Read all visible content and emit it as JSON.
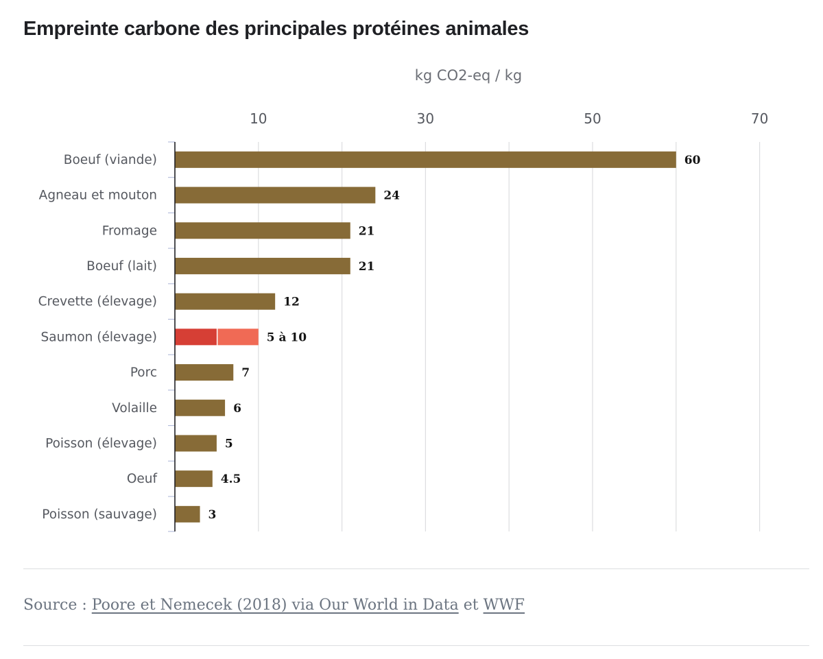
{
  "title": "Empreinte carbone des principales protéines animales",
  "source": {
    "prefix": "Source :",
    "link1": "Poore et Nemecek (2018) via Our World in Data",
    "middle": "et",
    "link2": "WWF"
  },
  "colors": {
    "bar": "#876b37",
    "range_low": "#d63f35",
    "range_high": "#f06a55",
    "grid": "#dcdde0",
    "axis": "#1f2024",
    "tick": "#a9b3d6"
  },
  "chart_data": {
    "type": "bar",
    "orientation": "horizontal",
    "title": "Empreinte carbone des principales protéines animales",
    "xlabel": "kg CO2-eq / kg",
    "xlim": [
      0,
      70
    ],
    "xticks": [
      10,
      30,
      50,
      70
    ],
    "gridlines": [
      10,
      20,
      30,
      40,
      50,
      60,
      70
    ],
    "grid": true,
    "categories": [
      "Boeuf (viande)",
      "Agneau et mouton",
      "Fromage",
      "Boeuf (lait)",
      "Crevette (élevage)",
      "Saumon (élevage)",
      "Porc",
      "Volaille",
      "Poisson (élevage)",
      "Oeuf",
      "Poisson (sauvage)"
    ],
    "bars": [
      {
        "value": 60,
        "label": "60"
      },
      {
        "value": 24,
        "label": "24"
      },
      {
        "value": 21,
        "label": "21"
      },
      {
        "value": 21,
        "label": "21"
      },
      {
        "value": 12,
        "label": "12"
      },
      {
        "value_range": [
          5,
          10
        ],
        "label": "5 à 10"
      },
      {
        "value": 7,
        "label": "7"
      },
      {
        "value": 6,
        "label": "6"
      },
      {
        "value": 5,
        "label": "5"
      },
      {
        "value": 4.5,
        "label": "4.5"
      },
      {
        "value": 3,
        "label": "3"
      }
    ]
  }
}
